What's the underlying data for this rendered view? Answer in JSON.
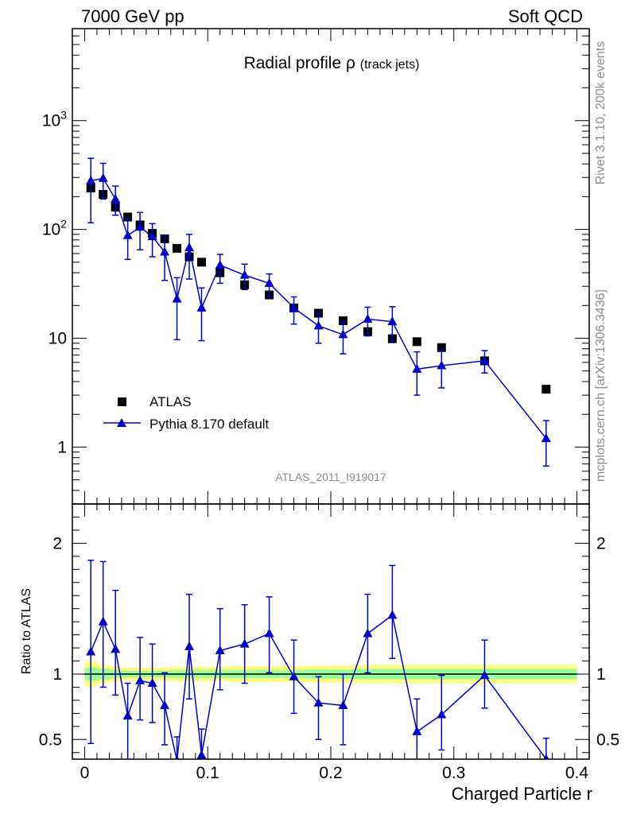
{
  "header": {
    "left": "7000 GeV pp",
    "right": "Soft QCD"
  },
  "side_labels": {
    "rivet": "Rivet 3.1.10,  200k events",
    "mcplots": "mcplots.cern.ch [arXiv:1306.3436]"
  },
  "analysis_id": "ATLAS_2011_I919017",
  "colors": {
    "data": "#000000",
    "mc": "#0000cc",
    "band_inner": "#99ff99",
    "band_outer": "#ffff80"
  },
  "chart_data": [
    {
      "type": "scatter",
      "title": "Radial profile ρ",
      "title_suffix": "(track jets)",
      "yscale": "log",
      "xlim": [
        -0.01,
        0.41
      ],
      "ylim": [
        0.3,
        7000
      ],
      "ytick_labels": [
        {
          "value": 1,
          "label": "1"
        },
        {
          "value": 10,
          "label": "10"
        },
        {
          "value": 100,
          "label": "10",
          "exp": "2"
        },
        {
          "value": 1000,
          "label": "10",
          "exp": "3"
        }
      ],
      "legend": {
        "position": "lower-left",
        "entries": [
          "ATLAS",
          "Pythia 8.170 default"
        ]
      },
      "series": [
        {
          "name": "ATLAS",
          "marker": "square",
          "x": [
            0.005,
            0.015,
            0.025,
            0.035,
            0.045,
            0.055,
            0.065,
            0.075,
            0.085,
            0.095,
            0.11,
            0.13,
            0.15,
            0.17,
            0.19,
            0.21,
            0.23,
            0.25,
            0.27,
            0.29,
            0.325,
            0.375
          ],
          "y": [
            240,
            210,
            160,
            130,
            110,
            92,
            82,
            67,
            56,
            50,
            40,
            31,
            25,
            19,
            17,
            14.5,
            11.5,
            9.9,
            9.3,
            8.2,
            6.2,
            3.4
          ]
        },
        {
          "name": "Pythia 8.170 default",
          "marker": "triangle",
          "x": [
            0.005,
            0.015,
            0.025,
            0.035,
            0.045,
            0.055,
            0.065,
            0.075,
            0.085,
            0.095,
            0.11,
            0.13,
            0.15,
            0.17,
            0.19,
            0.21,
            0.23,
            0.25,
            0.27,
            0.29,
            0.325,
            0.375
          ],
          "y": [
            280,
            295,
            190,
            88,
            105,
            86,
            62,
            23,
            68,
            19,
            47,
            38,
            32,
            19,
            13,
            10.8,
            15,
            14.2,
            5.2,
            5.6,
            6.2,
            1.2
          ],
          "err_low": [
            165,
            105,
            55,
            35,
            40,
            30,
            28,
            13.3,
            33,
            9.5,
            15,
            10,
            8,
            5.5,
            4,
            3.6,
            4.5,
            4.7,
            2.2,
            2.1,
            1.4,
            0.53
          ],
          "err_high": [
            170,
            110,
            60,
            37,
            38,
            27,
            24,
            13,
            22,
            10,
            12,
            10,
            7,
            5,
            4,
            3.4,
            4.3,
            5.3,
            2.3,
            2.2,
            1.5,
            0.55
          ]
        }
      ]
    },
    {
      "type": "scatter",
      "xlabel": "Charged Particle r",
      "ylabel": "Ratio to ATLAS",
      "xlim": [
        -0.01,
        0.41
      ],
      "ylim": [
        0.35,
        2.3
      ],
      "xtick_labels": [
        {
          "value": 0,
          "label": "0"
        },
        {
          "value": 0.1,
          "label": "0.1"
        },
        {
          "value": 0.2,
          "label": "0.2"
        },
        {
          "value": 0.3,
          "label": "0.3"
        },
        {
          "value": 0.4,
          "label": "0.4"
        }
      ],
      "ytick_labels": [
        {
          "value": 0.5,
          "label": "0.5"
        },
        {
          "value": 1,
          "label": "1"
        },
        {
          "value": 2,
          "label": "2"
        }
      ],
      "reference_line": 1,
      "band_edges": [
        0.0,
        0.01,
        0.02,
        0.03,
        0.04,
        0.05,
        0.06,
        0.07,
        0.08,
        0.09,
        0.1,
        0.12,
        0.14,
        0.16,
        0.18,
        0.2,
        0.22,
        0.24,
        0.26,
        0.28,
        0.3,
        0.35,
        0.4
      ],
      "band_inner": [
        0.05,
        0.04,
        0.03,
        0.025,
        0.025,
        0.025,
        0.025,
        0.03,
        0.03,
        0.03,
        0.03,
        0.03,
        0.03,
        0.03,
        0.035,
        0.035,
        0.04,
        0.04,
        0.04,
        0.04,
        0.04,
        0.04
      ],
      "band_outer": [
        0.1,
        0.07,
        0.06,
        0.05,
        0.05,
        0.05,
        0.05,
        0.055,
        0.055,
        0.055,
        0.055,
        0.06,
        0.06,
        0.06,
        0.065,
        0.065,
        0.07,
        0.07,
        0.07,
        0.07,
        0.07,
        0.07
      ],
      "series": [
        {
          "name": "Pythia 8.170 default",
          "x": [
            0.005,
            0.015,
            0.025,
            0.035,
            0.045,
            0.055,
            0.065,
            0.075,
            0.085,
            0.095,
            0.11,
            0.13,
            0.15,
            0.17,
            0.19,
            0.21,
            0.23,
            0.25,
            0.27,
            0.29,
            0.325,
            0.375
          ],
          "y": [
            1.17,
            1.4,
            1.19,
            0.68,
            0.95,
            0.93,
            0.76,
            0.34,
            1.21,
            0.38,
            1.18,
            1.23,
            1.31,
            0.98,
            0.78,
            0.76,
            1.31,
            1.45,
            0.56,
            0.69,
            0.99,
            0.35
          ],
          "err_low": [
            0.7,
            0.5,
            0.35,
            0.37,
            0.3,
            0.3,
            0.3,
            0.2,
            0.4,
            0.2,
            0.3,
            0.3,
            0.3,
            0.28,
            0.28,
            0.3,
            0.3,
            0.33,
            0.25,
            0.27,
            0.25,
            0.16
          ],
          "err_high": [
            0.7,
            0.46,
            0.45,
            0.25,
            0.33,
            0.3,
            0.25,
            0.18,
            0.4,
            0.2,
            0.32,
            0.3,
            0.28,
            0.28,
            0.2,
            0.24,
            0.3,
            0.38,
            0.25,
            0.3,
            0.27,
            0.16
          ]
        }
      ]
    }
  ]
}
